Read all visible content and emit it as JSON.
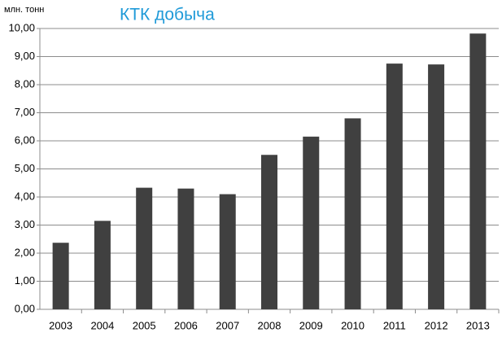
{
  "chart_data": {
    "type": "bar",
    "title": "КТК добыча",
    "y_label": "млн. тонн",
    "categories": [
      "2003",
      "2004",
      "2005",
      "2006",
      "2007",
      "2008",
      "2009",
      "2010",
      "2011",
      "2012",
      "2013"
    ],
    "values": [
      2.37,
      3.15,
      4.33,
      4.3,
      4.1,
      5.5,
      6.15,
      6.8,
      8.75,
      8.72,
      9.82
    ],
    "color": "#404040",
    "ylim": [
      0,
      10
    ],
    "yticks": [
      {
        "value": 0,
        "label": "0,00"
      },
      {
        "value": 1,
        "label": "1,00"
      },
      {
        "value": 2,
        "label": "2,00"
      },
      {
        "value": 3,
        "label": "3,00"
      },
      {
        "value": 4,
        "label": "4,00"
      },
      {
        "value": 5,
        "label": "5,00"
      },
      {
        "value": 6,
        "label": "6,00"
      },
      {
        "value": 7,
        "label": "7,00"
      },
      {
        "value": 8,
        "label": "8,00"
      },
      {
        "value": 9,
        "label": "9,00"
      },
      {
        "value": 10,
        "label": "10,00"
      }
    ],
    "grid": true
  }
}
